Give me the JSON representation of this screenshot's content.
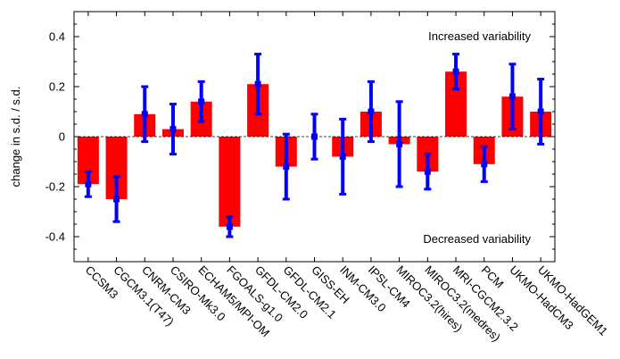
{
  "chart_data": {
    "type": "bar",
    "title": "",
    "xlabel": "",
    "ylabel": "change in s.d. / s.d.",
    "ylim": [
      -0.5,
      0.5
    ],
    "yticks": [
      -0.4,
      -0.2,
      0,
      0.2,
      0.4
    ],
    "ytick_labels": [
      "-0.4",
      "-0.2",
      "0",
      "0.2",
      "0.4"
    ],
    "grid": false,
    "zero_line": "dashed",
    "categories": [
      "CCSM3",
      "CGCM3.1(T47)",
      "CNRM-CM3",
      "CSIRO-Mk3.0",
      "ECHAM5/MPI-OM",
      "FGOALS-g1.0",
      "GFDL-CM2.0",
      "GFDL-CM2.1",
      "GISS-EH",
      "INM-CM3.0",
      "IPSL-CM4",
      "MIROC3.2(hires)",
      "MIROC3.2(medres)",
      "MRI-CGCM2.3.2",
      "PCM",
      "UKMO-HadCM3",
      "UKMO-HadGEM1"
    ],
    "series": [
      {
        "values": [
          -0.19,
          -0.25,
          0.09,
          0.03,
          0.14,
          -0.36,
          0.21,
          -0.12,
          0.0,
          -0.08,
          0.1,
          -0.03,
          -0.14,
          0.26,
          -0.11,
          0.16,
          0.1
        ],
        "color": "#ff0000"
      }
    ],
    "error_bars": {
      "color": "#0000ff",
      "center": [
        -0.19,
        -0.25,
        0.09,
        0.03,
        0.14,
        -0.36,
        0.21,
        -0.12,
        0.0,
        -0.08,
        0.1,
        -0.03,
        -0.14,
        0.26,
        -0.11,
        0.16,
        0.1
      ],
      "lower": [
        -0.24,
        -0.34,
        -0.02,
        -0.07,
        0.06,
        -0.4,
        0.09,
        -0.25,
        -0.09,
        -0.23,
        -0.02,
        -0.2,
        -0.21,
        0.19,
        -0.18,
        0.03,
        -0.03
      ],
      "upper": [
        -0.14,
        -0.16,
        0.2,
        0.13,
        0.22,
        -0.32,
        0.33,
        0.01,
        0.09,
        0.07,
        0.22,
        0.14,
        -0.07,
        0.33,
        -0.04,
        0.29,
        0.23
      ]
    },
    "annotations": [
      {
        "text": "Increased variability",
        "position": "top-right"
      },
      {
        "text": "Decreased variability",
        "position": "bottom-right"
      }
    ]
  }
}
